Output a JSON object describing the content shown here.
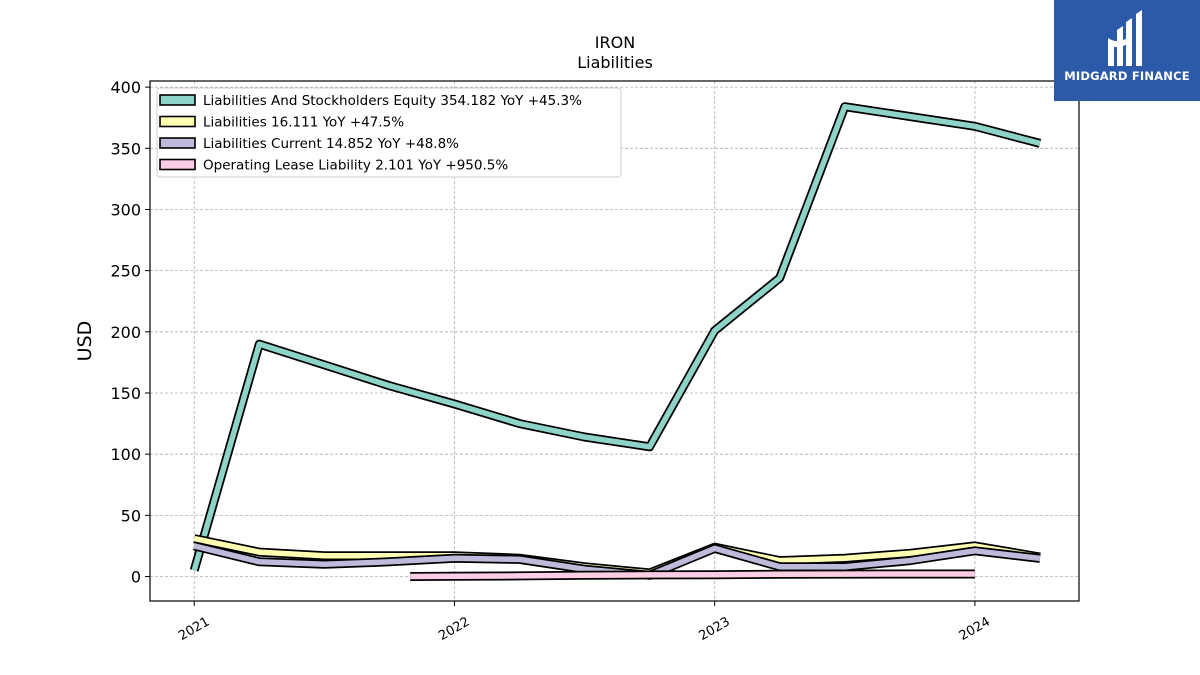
{
  "chart_data": {
    "type": "line",
    "title": "IRON",
    "subtitle": "Liabilities",
    "ylabel": "USD",
    "xlabel": "",
    "ylim": [
      -20,
      405
    ],
    "xlim": [
      2020.83,
      2024.4
    ],
    "yticks": [
      0,
      50,
      100,
      150,
      200,
      250,
      300,
      350,
      400
    ],
    "xticks": [
      {
        "value": 2021,
        "label": "2021"
      },
      {
        "value": 2022,
        "label": "2022"
      },
      {
        "value": 2023,
        "label": "2023"
      },
      {
        "value": 2024,
        "label": "2024"
      }
    ],
    "grid": true,
    "legend_position": "top-left",
    "series": [
      {
        "name": "Liabilities And Stockholders Equity  354.182 YoY +45.3%",
        "color": "#8dd3c7",
        "x": [
          2021.0,
          2021.25,
          2021.5,
          2021.75,
          2022.0,
          2022.25,
          2022.5,
          2022.75,
          2023.0,
          2023.25,
          2023.5,
          2023.75,
          2024.0,
          2024.25
        ],
        "values": [
          5,
          190,
          173,
          156,
          141,
          125,
          114,
          106,
          201,
          244,
          384,
          376,
          368,
          354
        ]
      },
      {
        "name": "Liabilities  16.111 YoY +47.5%",
        "color": "#ffffb3",
        "x": [
          2021.0,
          2021.25,
          2021.5,
          2021.75,
          2022.0,
          2022.25,
          2022.5,
          2022.75,
          2023.0,
          2023.25,
          2023.5,
          2023.75,
          2024.0,
          2024.25
        ],
        "values": [
          31,
          20,
          17,
          17,
          17,
          15,
          8,
          3,
          24,
          13,
          15,
          19,
          25,
          16
        ]
      },
      {
        "name": "Liabilities Current  14.852 YoY +48.8%",
        "color": "#bebada",
        "x": [
          2021.0,
          2021.25,
          2021.5,
          2021.75,
          2022.0,
          2022.25,
          2022.5,
          2022.75,
          2023.0,
          2023.25,
          2023.5,
          2023.75,
          2024.0,
          2024.25
        ],
        "values": [
          25,
          12,
          10,
          12,
          15,
          14,
          6,
          1,
          23,
          8,
          8,
          13,
          21,
          14.852
        ]
      },
      {
        "name": "Operating Lease Liability  2.101 YoY +950.5%",
        "color": "#fccde5",
        "x": [
          2021.83,
          2022.0,
          2022.25,
          2022.5,
          2022.75,
          2023.0,
          2023.25,
          2023.5,
          2023.75,
          2024.0
        ],
        "values": [
          0,
          0.2,
          0.5,
          1.0,
          1.3,
          1.5,
          1.8,
          2.0,
          2.1,
          2.1
        ]
      }
    ]
  },
  "logo": {
    "text": "MIDGARD FINANCE"
  }
}
